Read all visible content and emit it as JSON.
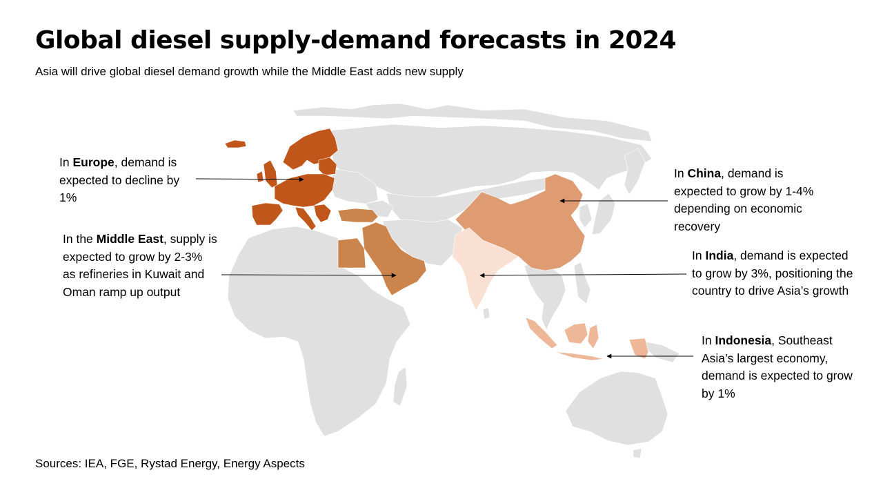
{
  "title": "Global diesel supply-demand forecasts in 2024",
  "subtitle": "Asia will drive global diesel demand growth while the Middle East adds new supply",
  "colors": {
    "land": "#e0e0e0",
    "europe": "#c0561a",
    "middle_east": "#cc844d",
    "china": "#df9c72",
    "india": "#fae0d2",
    "indonesia": "#eeb898"
  },
  "callouts": {
    "europe": {
      "pre": "In ",
      "region": "Europe",
      "post": ", demand is expected to decline by 1%"
    },
    "middle_east": {
      "pre": "In the ",
      "region": "Middle East",
      "post": ", supply is expected to grow by 2-3% as refineries in Kuwait and Oman ramp up output"
    },
    "china": {
      "pre": "In ",
      "region": "China",
      "post": ", demand is expected to grow by 1-4% depending on economic recovery"
    },
    "india": {
      "pre": "In ",
      "region": "India",
      "post": ", demand is expected to grow by 3%, positioning the country to drive Asia’s growth"
    },
    "indonesia": {
      "pre": "In ",
      "region": "Indonesia",
      "post": ", Southeast Asia’s largest economy, demand is expected to grow by 1%"
    }
  },
  "sources": "Sources: IEA, FGE, Rystad Energy, Energy Aspects"
}
